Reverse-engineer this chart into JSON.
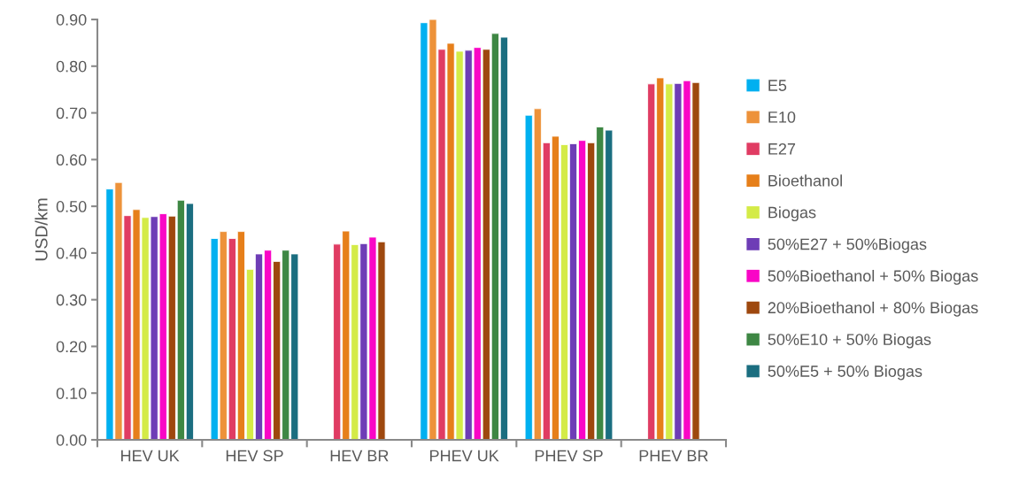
{
  "chart_data": {
    "type": "bar",
    "ylabel": "USD/km",
    "categories": [
      "HEV UK",
      "HEV SP",
      "HEV BR",
      "PHEV UK",
      "PHEV SP",
      "PHEV BR"
    ],
    "ylim": [
      0,
      0.9
    ],
    "yticks": [
      {
        "value": 0,
        "label": "0.00"
      },
      {
        "value": 0.1,
        "label": "0.10"
      },
      {
        "value": 0.2,
        "label": "0.20"
      },
      {
        "value": 0.3,
        "label": "0.30"
      },
      {
        "value": 0.4,
        "label": "0.40"
      },
      {
        "value": 0.5,
        "label": "0.50"
      },
      {
        "value": 0.6,
        "label": "0.60"
      },
      {
        "value": 0.7,
        "label": "0.70"
      },
      {
        "value": 0.8,
        "label": "0.80"
      },
      {
        "value": 0.9,
        "label": "0.90"
      }
    ],
    "grid": false,
    "legend": "right",
    "series": [
      {
        "name": "E5",
        "color": "#00b0f0",
        "values": [
          0.537,
          0.431,
          null,
          0.893,
          0.695,
          null
        ]
      },
      {
        "name": "E10",
        "color": "#ed923a",
        "values": [
          0.551,
          0.446,
          null,
          0.9,
          0.709,
          null
        ]
      },
      {
        "name": "E27",
        "color": "#e03c63",
        "values": [
          0.48,
          0.431,
          0.419,
          0.836,
          0.636,
          0.762
        ]
      },
      {
        "name": "Bioethanol",
        "color": "#e67f1a",
        "values": [
          0.493,
          0.446,
          0.447,
          0.849,
          0.65,
          0.775
        ]
      },
      {
        "name": "Biogas",
        "color": "#d4eb47",
        "values": [
          0.476,
          0.365,
          0.418,
          0.832,
          0.632,
          0.762
        ]
      },
      {
        "name": "50%E27 + 50%Biogas",
        "color": "#6e3db6",
        "values": [
          0.478,
          0.398,
          0.42,
          0.834,
          0.634,
          0.763
        ]
      },
      {
        "name": "50%Bioethanol + 50% Biogas",
        "color": "#f906c6",
        "values": [
          0.484,
          0.406,
          0.434,
          0.84,
          0.641,
          0.769
        ]
      },
      {
        "name": "20%Bioethanol + 80% Biogas",
        "color": "#9e480e",
        "values": [
          0.479,
          0.382,
          0.424,
          0.836,
          0.636,
          0.765
        ]
      },
      {
        "name": "50%E10 + 50% Biogas",
        "color": "#3e8744",
        "values": [
          0.513,
          0.406,
          null,
          0.87,
          0.67,
          null
        ]
      },
      {
        "name": "50%E5 + 50% Biogas",
        "color": "#1b6e80",
        "values": [
          0.506,
          0.398,
          null,
          0.862,
          0.663,
          null
        ]
      }
    ]
  }
}
